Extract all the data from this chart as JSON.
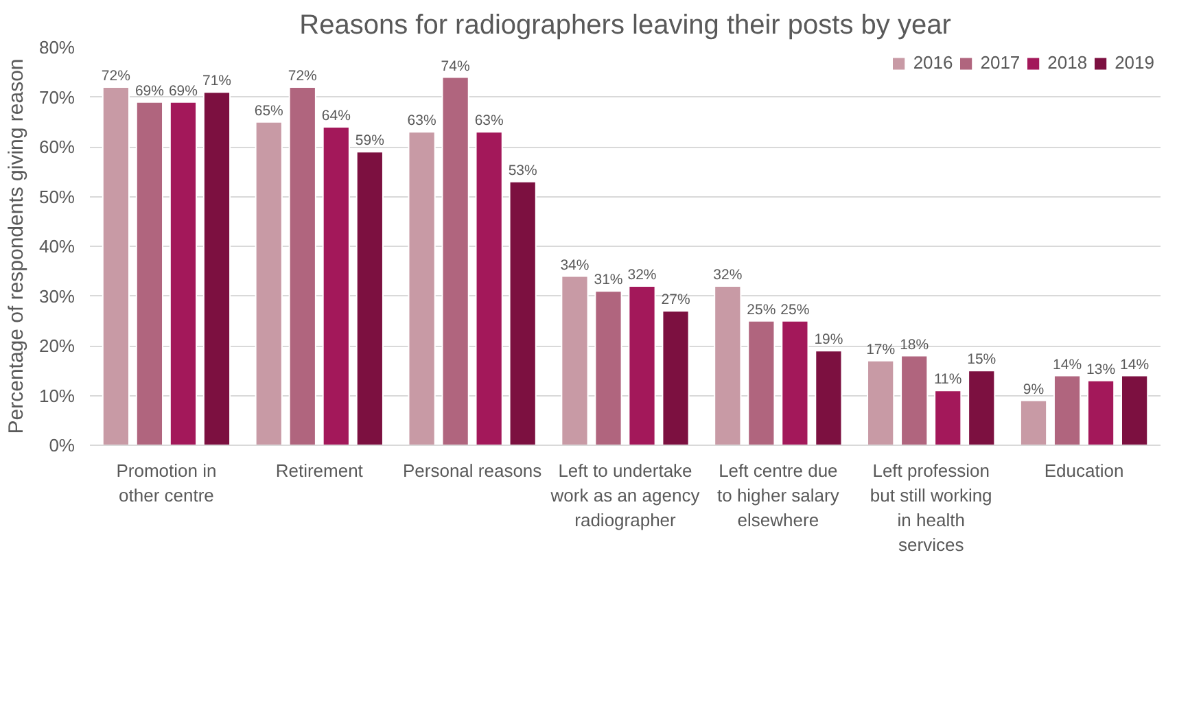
{
  "chart_data": {
    "type": "bar",
    "title": "Reasons for radiographers leaving their posts by year",
    "ylabel": "Percentage of respondents giving reason",
    "categories": [
      "Promotion in other centre",
      "Retirement",
      "Personal reasons",
      "Left to undertake work as an agency radiographer",
      "Left centre due to higher salary elsewhere",
      "Left profession but still working in health services",
      "Education"
    ],
    "series": [
      {
        "name": "2016",
        "color": "#c89aa5",
        "values": [
          72,
          65,
          63,
          34,
          32,
          17,
          9
        ],
        "value_labels": [
          "72%",
          "65%",
          "63%",
          "34%",
          "32%",
          "17%",
          "9%"
        ]
      },
      {
        "name": "2017",
        "color": "#b0657e",
        "values": [
          69,
          72,
          74,
          31,
          25,
          18,
          14
        ],
        "value_labels": [
          "69%",
          "72%",
          "74%",
          "31%",
          "25%",
          "18%",
          "14%"
        ]
      },
      {
        "name": "2018",
        "color": "#a3185a",
        "values": [
          69,
          64,
          63,
          32,
          25,
          11,
          13
        ],
        "value_labels": [
          "69%",
          "64%",
          "63%",
          "32%",
          "25%",
          "11%",
          "13%"
        ]
      },
      {
        "name": "2019",
        "color": "#7c1040",
        "values": [
          71,
          59,
          53,
          27,
          19,
          15,
          14
        ],
        "value_labels": [
          "71%",
          "59%",
          "53%",
          "27%",
          "19%",
          "15%",
          "14%"
        ]
      }
    ],
    "ylim": [
      0,
      80
    ],
    "yticks": [
      {
        "value": 0,
        "label": "0%"
      },
      {
        "value": 10,
        "label": "10%"
      },
      {
        "value": 20,
        "label": "20%"
      },
      {
        "value": 30,
        "label": "30%"
      },
      {
        "value": 40,
        "label": "40%"
      },
      {
        "value": 50,
        "label": "50%"
      },
      {
        "value": 60,
        "label": "60%"
      },
      {
        "value": 70,
        "label": "70%"
      },
      {
        "value": 80,
        "label": "80%"
      }
    ],
    "grid": "y",
    "legend": "top right"
  }
}
